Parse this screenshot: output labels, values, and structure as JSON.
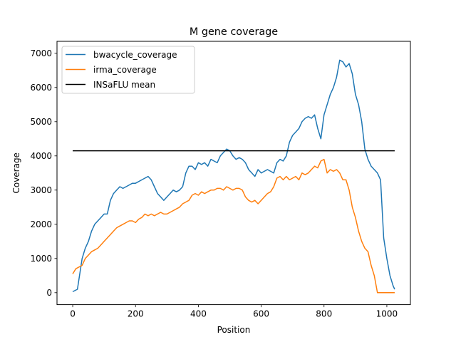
{
  "chart_data": {
    "type": "line",
    "title": "M gene coverage",
    "xlabel": "Position",
    "ylabel": "Coverage",
    "xlim": [
      -50,
      1075
    ],
    "ylim": [
      -350,
      7350
    ],
    "xticks": [
      0,
      200,
      400,
      600,
      800,
      1000
    ],
    "yticks": [
      0,
      1000,
      2000,
      3000,
      4000,
      5000,
      6000,
      7000
    ],
    "grid": false,
    "legend_position": "upper left",
    "series": [
      {
        "name": "bwacycle_coverage",
        "color": "#1f77b4",
        "x": [
          0,
          15,
          25,
          30,
          40,
          50,
          60,
          70,
          80,
          90,
          100,
          110,
          120,
          130,
          140,
          150,
          160,
          170,
          180,
          190,
          200,
          220,
          240,
          250,
          260,
          270,
          280,
          290,
          300,
          310,
          320,
          330,
          340,
          350,
          360,
          370,
          380,
          390,
          400,
          410,
          420,
          430,
          440,
          450,
          460,
          470,
          480,
          490,
          500,
          510,
          520,
          530,
          540,
          550,
          560,
          570,
          580,
          590,
          600,
          610,
          620,
          630,
          640,
          650,
          660,
          670,
          680,
          690,
          700,
          710,
          720,
          730,
          740,
          750,
          760,
          770,
          780,
          790,
          800,
          810,
          820,
          830,
          840,
          850,
          860,
          870,
          880,
          890,
          900,
          910,
          920,
          930,
          940,
          950,
          960,
          970,
          980,
          990,
          1000,
          1010,
          1020,
          1025
        ],
        "y": [
          30,
          100,
          700,
          1000,
          1300,
          1500,
          1800,
          2000,
          2100,
          2200,
          2300,
          2300,
          2700,
          2900,
          3000,
          3100,
          3050,
          3100,
          3150,
          3200,
          3200,
          3300,
          3400,
          3300,
          3100,
          2900,
          2800,
          2700,
          2800,
          2900,
          3000,
          2950,
          3000,
          3100,
          3500,
          3700,
          3700,
          3600,
          3800,
          3750,
          3800,
          3700,
          3900,
          3850,
          3800,
          4000,
          4100,
          4200,
          4150,
          4000,
          3900,
          3950,
          3900,
          3800,
          3600,
          3500,
          3400,
          3600,
          3500,
          3550,
          3600,
          3550,
          3500,
          3800,
          3900,
          3850,
          4000,
          4400,
          4600,
          4700,
          4800,
          5000,
          5100,
          5150,
          5100,
          5200,
          4800,
          4500,
          5200,
          5500,
          5800,
          6000,
          6300,
          6800,
          6750,
          6600,
          6700,
          6400,
          5800,
          5500,
          5000,
          4200,
          3900,
          3700,
          3600,
          3500,
          3300,
          1600,
          1000,
          500,
          200,
          100
        ]
      },
      {
        "name": "irma_coverage",
        "color": "#ff7f0e",
        "x": [
          0,
          10,
          30,
          40,
          50,
          60,
          70,
          80,
          90,
          100,
          110,
          120,
          130,
          140,
          150,
          160,
          170,
          180,
          190,
          200,
          210,
          220,
          230,
          240,
          250,
          260,
          270,
          280,
          290,
          300,
          310,
          320,
          330,
          340,
          350,
          360,
          370,
          380,
          390,
          400,
          410,
          420,
          430,
          440,
          450,
          460,
          470,
          480,
          490,
          500,
          510,
          520,
          530,
          540,
          550,
          560,
          570,
          580,
          590,
          600,
          610,
          620,
          630,
          640,
          650,
          660,
          670,
          680,
          690,
          700,
          710,
          720,
          730,
          740,
          750,
          760,
          770,
          780,
          790,
          800,
          810,
          820,
          830,
          840,
          850,
          860,
          870,
          880,
          890,
          900,
          910,
          920,
          930,
          940,
          950,
          960,
          970,
          980,
          990,
          1000,
          1010,
          1020,
          1025
        ],
        "y": [
          550,
          700,
          800,
          1000,
          1100,
          1200,
          1250,
          1300,
          1400,
          1500,
          1600,
          1700,
          1800,
          1900,
          1950,
          2000,
          2050,
          2100,
          2100,
          2050,
          2150,
          2200,
          2300,
          2250,
          2300,
          2250,
          2300,
          2350,
          2300,
          2300,
          2350,
          2400,
          2450,
          2500,
          2600,
          2650,
          2700,
          2850,
          2900,
          2850,
          2950,
          2900,
          2950,
          3000,
          3000,
          3050,
          3050,
          3000,
          3100,
          3050,
          3000,
          3050,
          3050,
          3000,
          2800,
          2700,
          2650,
          2700,
          2600,
          2700,
          2800,
          2900,
          2950,
          3100,
          3350,
          3400,
          3300,
          3400,
          3300,
          3350,
          3400,
          3300,
          3500,
          3450,
          3500,
          3600,
          3700,
          3650,
          3850,
          3900,
          3500,
          3600,
          3550,
          3600,
          3500,
          3300,
          3300,
          3000,
          2500,
          2200,
          1800,
          1500,
          1300,
          1200,
          800,
          500,
          0,
          0,
          0,
          0,
          0,
          0,
          0
        ]
      },
      {
        "name": "INSaFLU mean",
        "color": "#000000",
        "x": [
          0,
          1025
        ],
        "y": [
          4150,
          4150
        ]
      }
    ]
  }
}
